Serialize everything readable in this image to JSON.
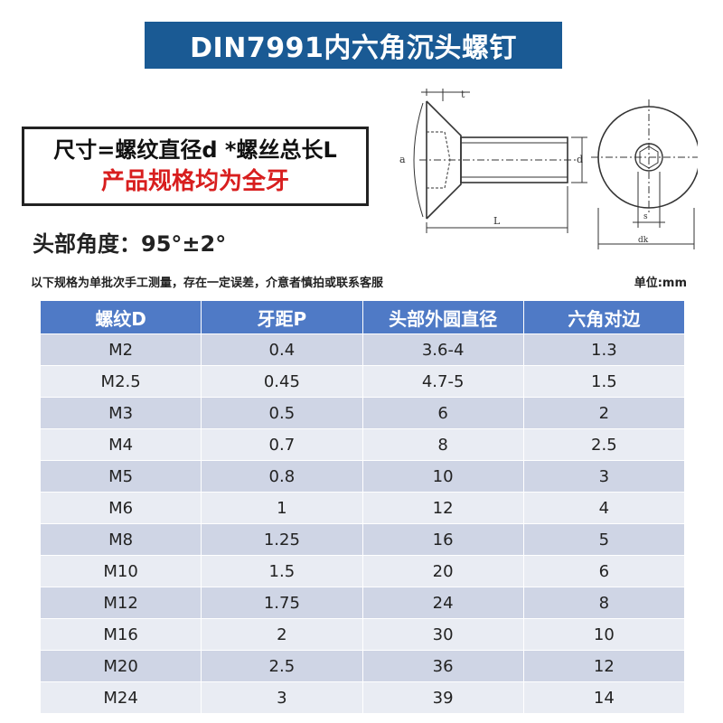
{
  "title": "DIN7991内六角沉头螺钉",
  "spec": {
    "line1": "尺寸=螺纹直径d *螺丝总长L",
    "line2": "产品规格均为全牙"
  },
  "angle": "头部角度：95°±2°",
  "note": "以下规格为单批次手工测量，存在一定误差，介意者慎拍或联系客服",
  "unit": "单位:mm",
  "diagram": {
    "label_t": "t",
    "label_a": "a",
    "label_d": "d",
    "label_L": "L",
    "label_s": "s",
    "label_dk": "dk"
  },
  "table": {
    "headers": [
      "螺纹D",
      "牙距P",
      "头部外圆直径",
      "六角对边"
    ],
    "rows": [
      [
        "M2",
        "0.4",
        "3.6-4",
        "1.3"
      ],
      [
        "M2.5",
        "0.45",
        "4.7-5",
        "1.5"
      ],
      [
        "M3",
        "0.5",
        "6",
        "2"
      ],
      [
        "M4",
        "0.7",
        "8",
        "2.5"
      ],
      [
        "M5",
        "0.8",
        "10",
        "3"
      ],
      [
        "M6",
        "1",
        "12",
        "4"
      ],
      [
        "M8",
        "1.25",
        "16",
        "5"
      ],
      [
        "M10",
        "1.5",
        "20",
        "6"
      ],
      [
        "M12",
        "1.75",
        "24",
        "8"
      ],
      [
        "M16",
        "2",
        "30",
        "10"
      ],
      [
        "M20",
        "2.5",
        "36",
        "12"
      ],
      [
        "M24",
        "3",
        "39",
        "14"
      ]
    ]
  }
}
